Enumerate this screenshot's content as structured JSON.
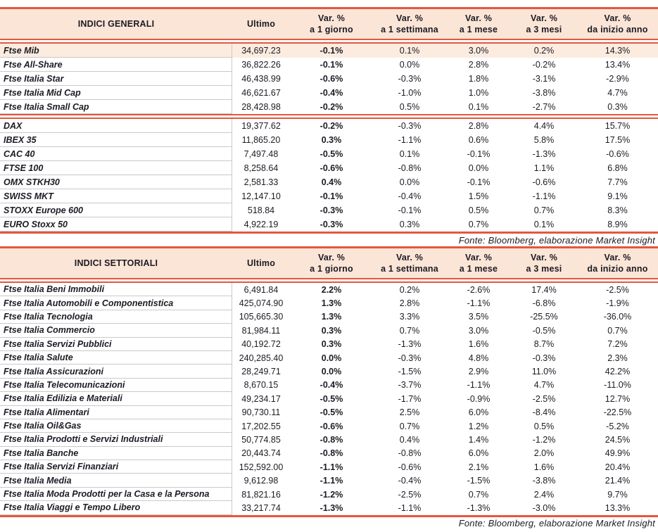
{
  "colors": {
    "accent_red": "#e4573e",
    "header_bg": "#fbe5d6",
    "highlight_bg": "#fcecdf",
    "text": "#1b1b24",
    "grid": "#c9c9c9"
  },
  "columns": [
    {
      "l1": "Ultimo",
      "l2": ""
    },
    {
      "l1": "Var. %",
      "l2": "a 1 giorno"
    },
    {
      "l1": "Var. %",
      "l2": "a 1 settimana"
    },
    {
      "l1": "Var. %",
      "l2": "a 1 mese"
    },
    {
      "l1": "Var. %",
      "l2": "a 3 mesi"
    },
    {
      "l1": "Var. %",
      "l2": "da inizio anno"
    }
  ],
  "source_note": "Fonte: Bloomberg, elaborazione Market Insight",
  "tables": [
    {
      "title": "INDICI GENERALI",
      "groups": [
        [
          {
            "name": "Ftse Mib",
            "values": [
              "34,697.23",
              "-0.1%",
              "0.1%",
              "3.0%",
              "0.2%",
              "14.3%"
            ],
            "highlight": true
          },
          {
            "name": "Ftse All-Share",
            "values": [
              "36,822.26",
              "-0.1%",
              "0.0%",
              "2.8%",
              "-0.2%",
              "13.4%"
            ]
          },
          {
            "name": "Ftse Italia Star",
            "values": [
              "46,438.99",
              "-0.6%",
              "-0.3%",
              "1.8%",
              "-3.1%",
              "-2.9%"
            ]
          },
          {
            "name": "Ftse Italia Mid Cap",
            "values": [
              "46,621.67",
              "-0.4%",
              "-1.0%",
              "1.0%",
              "-3.8%",
              "4.7%"
            ]
          },
          {
            "name": "Ftse Italia Small Cap",
            "values": [
              "28,428.98",
              "-0.2%",
              "0.5%",
              "0.1%",
              "-2.7%",
              "0.3%"
            ]
          }
        ],
        [
          {
            "name": "DAX",
            "values": [
              "19,377.62",
              "-0.2%",
              "-0.3%",
              "2.8%",
              "4.4%",
              "15.7%"
            ]
          },
          {
            "name": "IBEX 35",
            "values": [
              "11,865.20",
              "0.3%",
              "-1.1%",
              "0.6%",
              "5.8%",
              "17.5%"
            ]
          },
          {
            "name": "CAC 40",
            "values": [
              "7,497.48",
              "-0.5%",
              "0.1%",
              "-0.1%",
              "-1.3%",
              "-0.6%"
            ]
          },
          {
            "name": "FTSE 100",
            "values": [
              "8,258.64",
              "-0.6%",
              "-0.8%",
              "0.0%",
              "1.1%",
              "6.8%"
            ]
          },
          {
            "name": "OMX STKH30",
            "values": [
              "2,581.33",
              "0.4%",
              "0.0%",
              "-0.1%",
              "-0.6%",
              "7.7%"
            ]
          },
          {
            "name": "SWISS MKT",
            "values": [
              "12,147.10",
              "-0.1%",
              "-0.4%",
              "1.5%",
              "-1.1%",
              "9.1%"
            ]
          },
          {
            "name": "STOXX Europe 600",
            "values": [
              "518.84",
              "-0.3%",
              "-0.1%",
              "0.5%",
              "0.7%",
              "8.3%"
            ]
          },
          {
            "name": "EURO Stoxx 50",
            "values": [
              "4,922.19",
              "-0.3%",
              "0.3%",
              "0.7%",
              "0.1%",
              "8.9%"
            ]
          }
        ]
      ]
    },
    {
      "title": "INDICI SETTORIALI",
      "groups": [
        [
          {
            "name": "Ftse Italia Beni Immobili",
            "values": [
              "6,491.84",
              "2.2%",
              "0.2%",
              "-2.6%",
              "17.4%",
              "-2.5%"
            ]
          },
          {
            "name": "Ftse Italia Automobili e Componentistica",
            "values": [
              "425,074.90",
              "1.3%",
              "2.8%",
              "-1.1%",
              "-6.8%",
              "-1.9%"
            ]
          },
          {
            "name": "Ftse Italia Tecnologia",
            "values": [
              "105,665.30",
              "1.3%",
              "3.3%",
              "3.5%",
              "-25.5%",
              "-36.0%"
            ]
          },
          {
            "name": "Ftse Italia Commercio",
            "values": [
              "81,984.11",
              "0.3%",
              "0.7%",
              "3.0%",
              "-0.5%",
              "0.7%"
            ]
          },
          {
            "name": "Ftse Italia Servizi Pubblici",
            "values": [
              "40,192.72",
              "0.3%",
              "-1.3%",
              "1.6%",
              "8.7%",
              "7.2%"
            ]
          },
          {
            "name": "Ftse Italia Salute",
            "values": [
              "240,285.40",
              "0.0%",
              "-0.3%",
              "4.8%",
              "-0.3%",
              "2.3%"
            ]
          },
          {
            "name": "Ftse Italia Assicurazioni",
            "values": [
              "28,249.71",
              "0.0%",
              "-1.5%",
              "2.9%",
              "11.0%",
              "42.2%"
            ]
          },
          {
            "name": "Ftse Italia Telecomunicazioni",
            "values": [
              "8,670.15",
              "-0.4%",
              "-3.7%",
              "-1.1%",
              "4.7%",
              "-11.0%"
            ]
          },
          {
            "name": "Ftse Italia Edilizia e Materiali",
            "values": [
              "49,234.17",
              "-0.5%",
              "-1.7%",
              "-0.9%",
              "-2.5%",
              "12.7%"
            ]
          },
          {
            "name": "Ftse Italia Alimentari",
            "values": [
              "90,730.11",
              "-0.5%",
              "2.5%",
              "6.0%",
              "-8.4%",
              "-22.5%"
            ]
          },
          {
            "name": "Ftse Italia Oil&Gas",
            "values": [
              "17,202.55",
              "-0.6%",
              "0.7%",
              "1.2%",
              "0.5%",
              "-5.2%"
            ]
          },
          {
            "name": "Ftse Italia Prodotti e Servizi Industriali",
            "values": [
              "50,774.85",
              "-0.8%",
              "0.4%",
              "1.4%",
              "-1.2%",
              "24.5%"
            ]
          },
          {
            "name": "Ftse Italia Banche",
            "values": [
              "20,443.74",
              "-0.8%",
              "-0.8%",
              "6.0%",
              "2.0%",
              "49.9%"
            ]
          },
          {
            "name": "Ftse Italia Servizi Finanziari",
            "values": [
              "152,592.00",
              "-1.1%",
              "-0.6%",
              "2.1%",
              "1.6%",
              "20.4%"
            ]
          },
          {
            "name": "Ftse Italia Media",
            "values": [
              "9,612.98",
              "-1.1%",
              "-0.4%",
              "-1.5%",
              "-3.8%",
              "21.4%"
            ]
          },
          {
            "name": "Ftse Italia Moda Prodotti per la Casa e la Persona",
            "values": [
              "81,821.16",
              "-1.2%",
              "-2.5%",
              "0.7%",
              "2.4%",
              "9.7%"
            ]
          },
          {
            "name": "Ftse Italia Viaggi e Tempo Libero",
            "values": [
              "33,217.74",
              "-1.3%",
              "-1.1%",
              "-1.3%",
              "-3.0%",
              "13.3%"
            ]
          }
        ]
      ]
    }
  ]
}
